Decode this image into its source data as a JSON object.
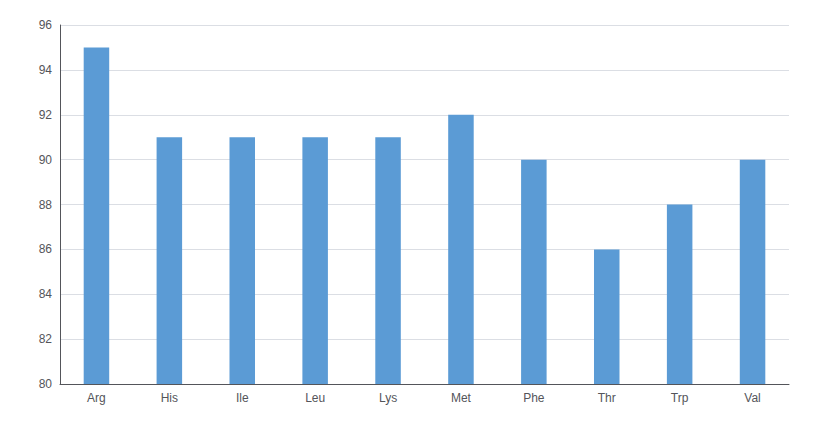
{
  "chart_data": {
    "type": "bar",
    "categories": [
      "Arg",
      "His",
      "Ile",
      "Leu",
      "Lys",
      "Met",
      "Phe",
      "Thr",
      "Trp",
      "Val"
    ],
    "values": [
      95,
      91,
      91,
      91,
      91,
      92,
      90,
      86,
      88,
      90
    ],
    "color": "#5b9bd5",
    "ylim": [
      80,
      96
    ],
    "yticks": [
      80,
      82,
      84,
      86,
      88,
      90,
      92,
      94,
      96
    ],
    "grid": true
  }
}
